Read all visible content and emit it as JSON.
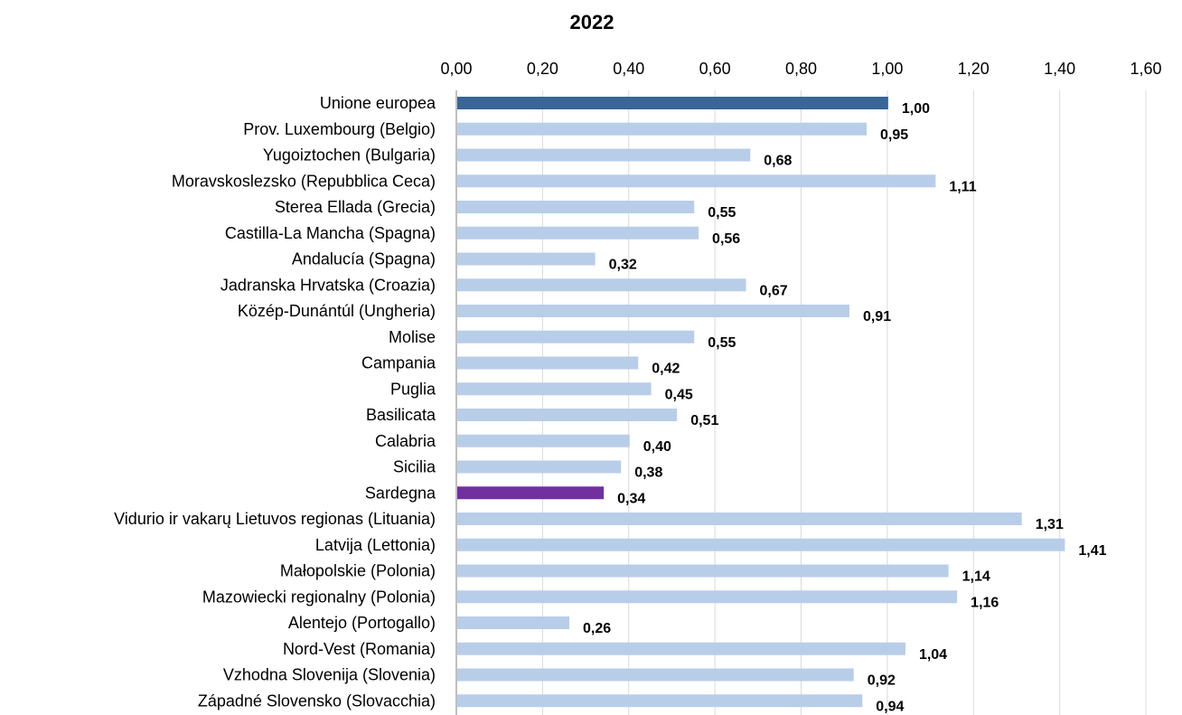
{
  "chart_data": {
    "type": "bar",
    "orientation": "horizontal",
    "title": "2022",
    "xlim": [
      0,
      1.6
    ],
    "ticks": [
      "0,00",
      "0,20",
      "0,40",
      "0,60",
      "0,80",
      "1,00",
      "1,20",
      "1,40",
      "1,60"
    ],
    "grid": true,
    "categories": [
      "Unione europea",
      "Prov. Luxembourg (Belgio)",
      "Yugoiztochen (Bulgaria)",
      "Moravskoslezsko (Repubblica Ceca)",
      "Sterea Ellada (Grecia)",
      "Castilla-La Mancha (Spagna)",
      "Andalucía (Spagna)",
      "Jadranska Hrvatska (Croazia)",
      "Közép-Dunántúl (Ungheria)",
      "Molise",
      "Campania",
      "Puglia",
      "Basilicata",
      "Calabria",
      "Sicilia",
      "Sardegna",
      "Vidurio ir vakarų Lietuvos regionas (Lituania)",
      "Latvija (Lettonia)",
      "Małopolskie (Polonia)",
      "Mazowiecki regionalny (Polonia)",
      "Alentejo (Portogallo)",
      "Nord-Vest (Romania)",
      "Vzhodna Slovenija (Slovenia)",
      "Západné Slovensko (Slovacchia)"
    ],
    "values": [
      1.0,
      0.95,
      0.68,
      1.11,
      0.55,
      0.56,
      0.32,
      0.67,
      0.91,
      0.55,
      0.42,
      0.45,
      0.51,
      0.4,
      0.38,
      0.34,
      1.31,
      1.41,
      1.14,
      1.16,
      0.26,
      1.04,
      0.92,
      0.94
    ],
    "value_labels": [
      "1,00",
      "0,95",
      "0,68",
      "1,11",
      "0,55",
      "0,56",
      "0,32",
      "0,67",
      "0,91",
      "0,55",
      "0,42",
      "0,45",
      "0,51",
      "0,40",
      "0,38",
      "0,34",
      "1,31",
      "1,41",
      "1,14",
      "1,16",
      "0,26",
      "1,04",
      "0,92",
      "0,94"
    ],
    "colors": {
      "default": "#b8cde8",
      "Unione europea": "#386697",
      "Sardegna": "#7030a0",
      "gridline": "#d9d9d9",
      "axis": "#808080"
    }
  }
}
